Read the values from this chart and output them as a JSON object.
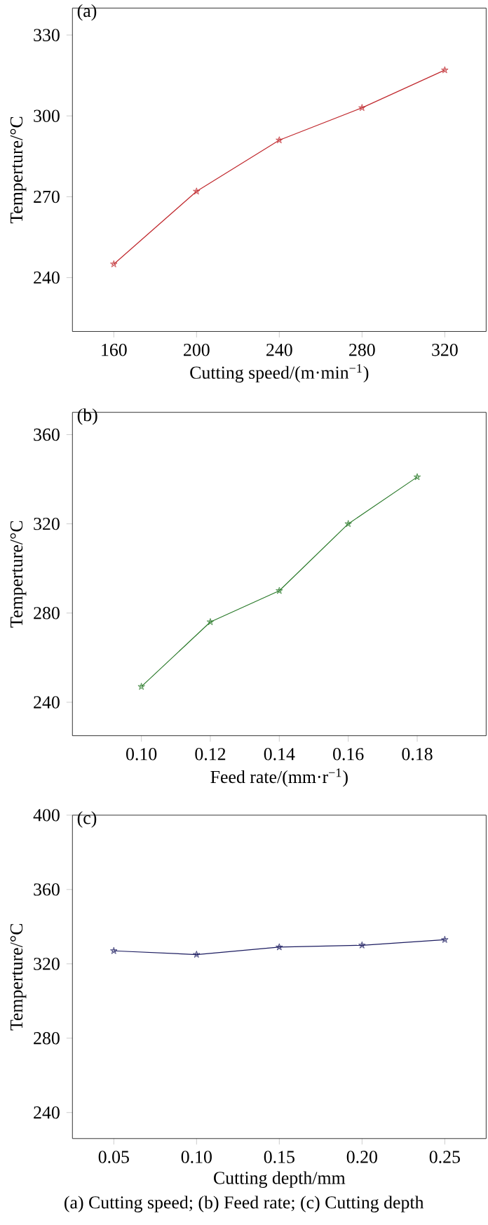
{
  "chart_data": [
    {
      "type": "line",
      "title": "(a)",
      "xlabel": "Cutting speed/(m·min$^{−1}$)",
      "ylabel": "Temperture/°C",
      "x": [
        160,
        200,
        240,
        280,
        320
      ],
      "series": [
        {
          "color": "#c0282d",
          "values": [
            245,
            272,
            291,
            303,
            317
          ]
        }
      ],
      "xlim": [
        140,
        340
      ],
      "ylim": [
        220,
        340
      ],
      "xticks": [
        160,
        200,
        240,
        280,
        320
      ],
      "yticks": [
        240,
        270,
        300,
        330
      ],
      "marker": "star",
      "line_style": "solid"
    },
    {
      "type": "line",
      "title": "(b)",
      "xlabel": "Feed rate/(mm·r$^{−1}$)",
      "ylabel": "Temperture/°C",
      "x": [
        0.1,
        0.12,
        0.14,
        0.16,
        0.18
      ],
      "series": [
        {
          "color": "#2a7a2a",
          "values": [
            247,
            276,
            290,
            320,
            341
          ]
        }
      ],
      "xlim": [
        0.08,
        0.2
      ],
      "ylim": [
        225,
        370
      ],
      "xticks": [
        {
          "value": 0.1,
          "label": "0.10"
        },
        {
          "value": 0.12,
          "label": "0.12"
        },
        {
          "value": 0.14,
          "label": "0.14"
        },
        {
          "value": 0.16,
          "label": "0.16"
        },
        {
          "value": 0.18,
          "label": "0.18"
        }
      ],
      "yticks": [
        240,
        280,
        320,
        360
      ],
      "marker": "star",
      "line_style": "solid"
    },
    {
      "type": "line",
      "title": "(c)",
      "xlabel": "Cutting depth/mm",
      "ylabel": "Temperture/°C",
      "x": [
        0.05,
        0.1,
        0.15,
        0.2,
        0.25
      ],
      "series": [
        {
          "color": "#1c1c60",
          "values": [
            327,
            325,
            329,
            330,
            333
          ]
        }
      ],
      "xlim": [
        0.025,
        0.275
      ],
      "ylim": [
        226,
        400
      ],
      "xticks": [
        {
          "value": 0.05,
          "label": "0.05"
        },
        {
          "value": 0.1,
          "label": "0.10"
        },
        {
          "value": 0.15,
          "label": "0.15"
        },
        {
          "value": 0.2,
          "label": "0.20"
        },
        {
          "value": 0.25,
          "label": "0.25"
        }
      ],
      "yticks": [
        240,
        280,
        320,
        360,
        400
      ],
      "marker": "star",
      "line_style": "solid",
      "annotations": [
        "(a) Cutting speed; (b) Feed rate; (c) Cutting depth"
      ]
    }
  ]
}
